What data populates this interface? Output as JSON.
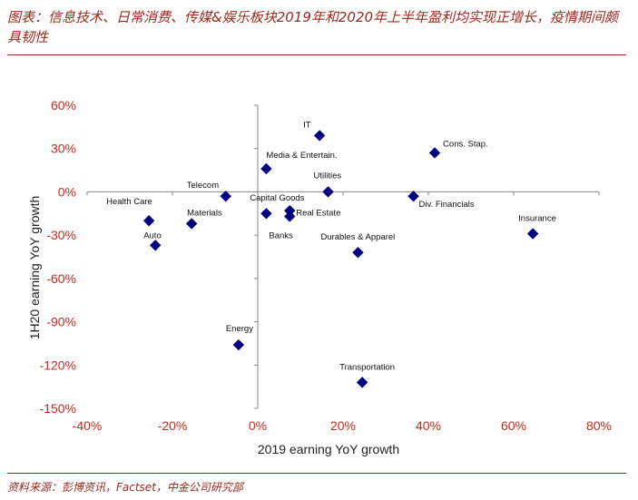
{
  "figure": {
    "title": "图表：信息技术、日常消费、传媒&娱乐板块2019年和2020年上半年盈利均实现正增长，疫情期间颇具韧性",
    "source": "资料来源：彭博资讯，Factset，中金公司研究部"
  },
  "chart_data": {
    "type": "scatter",
    "xlabel": "2019 earning YoY growth",
    "ylabel": "1H20 earning YoY growth",
    "xlim": [
      -40,
      80
    ],
    "ylim": [
      -150,
      60
    ],
    "x_ticks": [
      -40,
      -20,
      0,
      20,
      40,
      60,
      80
    ],
    "x_tick_labels": [
      "-40%",
      "-20%",
      "0%",
      "20%",
      "40%",
      "60%",
      "80%"
    ],
    "y_ticks": [
      60,
      30,
      0,
      -30,
      -60,
      -90,
      -120,
      -150
    ],
    "y_tick_labels": [
      "60%",
      "30%",
      "0%",
      "-30%",
      "-60%",
      "-90%",
      "-120%",
      "-150%"
    ],
    "marker_color": "#000080",
    "points": [
      {
        "label": "IT",
        "x": 14.5,
        "y": 39
      },
      {
        "label": "Cons. Stap.",
        "x": 41.5,
        "y": 27
      },
      {
        "label": "Media & Entertain.",
        "x": 2,
        "y": 16
      },
      {
        "label": "Utilities",
        "x": 16.5,
        "y": 0
      },
      {
        "label": "Telecom",
        "x": -7.5,
        "y": -3
      },
      {
        "label": "Div. Financials",
        "x": 36.5,
        "y": -3
      },
      {
        "label": "Capital Goods",
        "x": 7.5,
        "y": -13
      },
      {
        "label": "Real Estate",
        "x": 7.5,
        "y": -17
      },
      {
        "label": "Banks",
        "x": 2,
        "y": -15
      },
      {
        "label": "Health Care",
        "x": -25.5,
        "y": -20
      },
      {
        "label": "Materials",
        "x": -15.5,
        "y": -22
      },
      {
        "label": "Auto",
        "x": -24,
        "y": -37
      },
      {
        "label": "Insurance",
        "x": 64.5,
        "y": -29
      },
      {
        "label": "Durables & Apparel",
        "x": 23.5,
        "y": -42
      },
      {
        "label": "Energy",
        "x": -4.5,
        "y": -106
      },
      {
        "label": "Transportation",
        "x": 24.5,
        "y": -132
      }
    ]
  }
}
